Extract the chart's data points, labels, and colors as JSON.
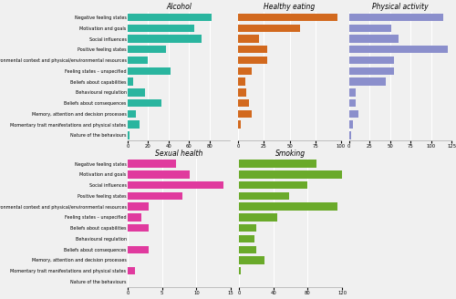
{
  "categories": [
    "Negative feeling states",
    "Motivation and goals",
    "Social influences",
    "Positive feeling states",
    "Environmental context and physical/environmental resources",
    "Feeling states – unspecified",
    "Beliefs about capabilities",
    "Behavioural regulation",
    "Beliefs about consequences",
    "Memory, attention and decision processes",
    "Momentary trait manifestations and physical states",
    "Nature of the behaviours"
  ],
  "alcohol": [
    82,
    65,
    72,
    37,
    20,
    42,
    5,
    17,
    33,
    8,
    12,
    2
  ],
  "healthy_eating": [
    97,
    60,
    20,
    28,
    28,
    13,
    7,
    8,
    10,
    13,
    2,
    0
  ],
  "physical_activity": [
    115,
    52,
    60,
    120,
    55,
    55,
    45,
    8,
    8,
    12,
    5,
    3
  ],
  "sexual_health": [
    7,
    9,
    14,
    8,
    3,
    2,
    3,
    0,
    3,
    0,
    1,
    0
  ],
  "smoking": [
    90,
    120,
    80,
    58,
    115,
    45,
    20,
    18,
    20,
    30,
    2,
    0
  ],
  "alcohol_color": "#2ab59f",
  "healthy_eating_color": "#d2691e",
  "physical_activity_color": "#8b8fcc",
  "sexual_health_color": "#e03a9e",
  "smoking_color": "#6aaa2a",
  "alcohol_xlim": [
    0,
    100
  ],
  "healthy_eating_xlim": [
    0,
    100
  ],
  "physical_activity_xlim": [
    0,
    125
  ],
  "sexual_health_xlim": [
    0,
    15
  ],
  "smoking_xlim": [
    0,
    120
  ],
  "alcohol_xticks": [
    0,
    20,
    40,
    60,
    80
  ],
  "healthy_eating_xticks": [
    0,
    25,
    50,
    75,
    100
  ],
  "physical_activity_xticks": [
    0,
    25,
    50,
    75,
    100,
    125
  ],
  "sexual_health_xticks": [
    0,
    5,
    10,
    15
  ],
  "smoking_xticks": [
    0,
    40,
    80,
    120
  ],
  "titles": [
    "Alcohol",
    "Healthy eating",
    "Physical activity",
    "Sexual health",
    "Smoking"
  ],
  "background_color": "#f0f0f0"
}
